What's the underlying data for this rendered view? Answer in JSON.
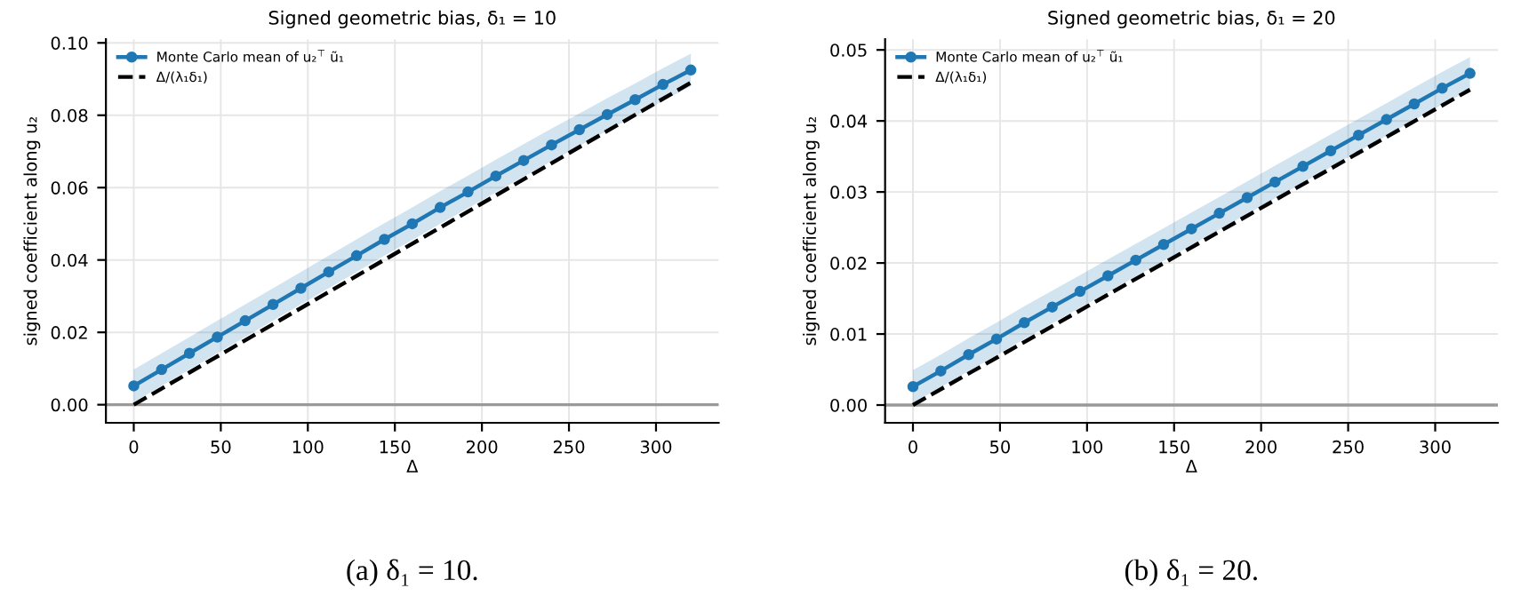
{
  "chart_data": [
    {
      "type": "line",
      "title": "Signed geometric bias, δ₁ = 10",
      "xlabel": "Δ",
      "ylabel": "signed coefficient along u₂",
      "series": [
        {
          "name": "Monte Carlo mean of u₂$^{⊤}$ ũ₁",
          "color": "#1f77b4",
          "marker": "circle",
          "line_style": "solid",
          "x": [
            0,
            16,
            32,
            48,
            64,
            80,
            96,
            112,
            128,
            144,
            160,
            176,
            192,
            208,
            224,
            240,
            256,
            272,
            288,
            304,
            320
          ],
          "values": [
            0.0052,
            0.0097,
            0.0142,
            0.0187,
            0.0232,
            0.0277,
            0.0322,
            0.0367,
            0.0412,
            0.0457,
            0.05,
            0.0545,
            0.0588,
            0.0632,
            0.0675,
            0.0718,
            0.076,
            0.0802,
            0.0843,
            0.0885,
            0.0925
          ],
          "lower": [
            0.0007,
            0.0052,
            0.0097,
            0.0142,
            0.0187,
            0.0232,
            0.0277,
            0.0322,
            0.0367,
            0.0412,
            0.0455,
            0.05,
            0.0543,
            0.0587,
            0.063,
            0.0673,
            0.0715,
            0.0757,
            0.0798,
            0.084,
            0.088
          ],
          "upper": [
            0.0097,
            0.0142,
            0.0187,
            0.0232,
            0.0277,
            0.0322,
            0.0367,
            0.0412,
            0.0457,
            0.0502,
            0.0545,
            0.059,
            0.0633,
            0.0677,
            0.072,
            0.0763,
            0.0805,
            0.0847,
            0.0888,
            0.093,
            0.097
          ]
        },
        {
          "name": "Δ/(λ₁δ₁)",
          "color": "#000000",
          "marker": "none",
          "line_style": "dashed",
          "x": [
            0,
            320
          ],
          "values": [
            0,
            0.089
          ]
        }
      ],
      "xlim": [
        -16,
        336
      ],
      "ylim": [
        -0.005,
        0.101
      ],
      "xticks": [
        0,
        50,
        100,
        150,
        200,
        250,
        300
      ],
      "yticks": [
        {
          "value": 0,
          "label": "0.00"
        },
        {
          "value": 0.02,
          "label": "0.02"
        },
        {
          "value": 0.04,
          "label": "0.04"
        },
        {
          "value": 0.06,
          "label": "0.06"
        },
        {
          "value": 0.08,
          "label": "0.08"
        },
        {
          "value": 0.1,
          "label": "0.10"
        }
      ],
      "ref_lines": [
        {
          "axis": "y",
          "value": 0,
          "color": "#999999",
          "line_style": "solid"
        }
      ],
      "grid": true,
      "legend": "top left",
      "annotations": [
        "(a) δ₁ = 10."
      ]
    },
    {
      "type": "line",
      "title": "Signed geometric bias, δ₁ = 20",
      "xlabel": "Δ",
      "ylabel": "signed coefficient along u₂",
      "series": [
        {
          "name": "Monte Carlo mean of u₂$^{⊤}$ ũ₁",
          "color": "#1f77b4",
          "marker": "circle",
          "line_style": "solid",
          "x": [
            0,
            16,
            32,
            48,
            64,
            80,
            96,
            112,
            128,
            144,
            160,
            176,
            192,
            208,
            224,
            240,
            256,
            272,
            288,
            304,
            320
          ],
          "values": [
            0.0026,
            0.0048,
            0.0071,
            0.0093,
            0.0116,
            0.0138,
            0.016,
            0.0182,
            0.0204,
            0.0226,
            0.0248,
            0.027,
            0.0292,
            0.0314,
            0.0336,
            0.0358,
            0.038,
            0.0402,
            0.0424,
            0.0446,
            0.0467
          ],
          "lower": [
            0.0003,
            0.0025,
            0.0048,
            0.007,
            0.0093,
            0.0115,
            0.0137,
            0.0159,
            0.0181,
            0.0203,
            0.0225,
            0.0247,
            0.0269,
            0.0291,
            0.0313,
            0.0335,
            0.0357,
            0.0379,
            0.0401,
            0.0423,
            0.0444
          ],
          "upper": [
            0.0049,
            0.0071,
            0.0094,
            0.0116,
            0.0139,
            0.0161,
            0.0183,
            0.0205,
            0.0227,
            0.0249,
            0.0271,
            0.0293,
            0.0315,
            0.0337,
            0.0359,
            0.0381,
            0.0403,
            0.0425,
            0.0447,
            0.0469,
            0.049
          ]
        },
        {
          "name": "Δ/(λ₁δ₁)",
          "color": "#000000",
          "marker": "none",
          "line_style": "dashed",
          "x": [
            0,
            320
          ],
          "values": [
            0,
            0.0444
          ]
        }
      ],
      "xlim": [
        -16,
        336
      ],
      "ylim": [
        -0.0025,
        0.0515
      ],
      "xticks": [
        0,
        50,
        100,
        150,
        200,
        250,
        300
      ],
      "yticks": [
        {
          "value": 0,
          "label": "0.00"
        },
        {
          "value": 0.01,
          "label": "0.01"
        },
        {
          "value": 0.02,
          "label": "0.02"
        },
        {
          "value": 0.03,
          "label": "0.03"
        },
        {
          "value": 0.04,
          "label": "0.04"
        },
        {
          "value": 0.05,
          "label": "0.05"
        }
      ],
      "ref_lines": [
        {
          "axis": "y",
          "value": 0,
          "color": "#999999",
          "line_style": "solid"
        }
      ],
      "grid": true,
      "legend": "top left",
      "annotations": [
        "(b) δ₁ = 20."
      ]
    }
  ]
}
